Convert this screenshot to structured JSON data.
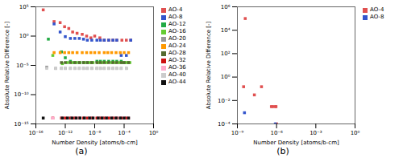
{
  "chart_data": [
    {
      "type": "scatter",
      "caption": "(a)",
      "xlabel": "Number Density [atoms/b-cm]",
      "ylabel": "Absolute Relative Difference [-]",
      "log": true,
      "grid": false,
      "legend": "right",
      "marker": "square",
      "xlim": [
        1e-16,
        1.0
      ],
      "ylim": [
        1e-15,
        100000.0
      ],
      "xticks": [
        {
          "value": 1e-16,
          "label": "10⁻¹⁶"
        },
        {
          "value": 1e-12,
          "label": "10⁻¹²"
        },
        {
          "value": 1e-08,
          "label": "10⁻⁸"
        },
        {
          "value": 0.0001,
          "label": "10⁻⁴"
        },
        {
          "value": 1.0,
          "label": "10⁰"
        }
      ],
      "yticks": [
        {
          "value": 1e-15,
          "label": "10⁻¹⁵"
        },
        {
          "value": 1e-10,
          "label": "10⁻¹⁰"
        },
        {
          "value": 1e-05,
          "label": "10⁻⁵"
        },
        {
          "value": 1.0,
          "label": "10⁰"
        },
        {
          "value": 100000.0,
          "label": "10⁵"
        }
      ],
      "series": [
        {
          "name": "AO-4",
          "color": "#e05050",
          "x": [
            1e-15,
            3e-14,
            2e-13,
            8e-13,
            3e-12,
            1e-11,
            4e-11,
            2e-10,
            8e-10,
            3e-09,
            1e-08,
            5e-08,
            2e-07,
            8e-07,
            3e-06,
            1e-05,
            5e-05,
            0.0002,
            0.0008
          ],
          "y": [
            30000.0,
            300.0,
            200.0,
            40.0,
            20.0,
            5.0,
            3.0,
            2.0,
            1.0,
            0.5,
            1.0,
            0.5,
            0.2,
            0.2,
            0.2,
            0.2,
            0.2,
            0.2,
            0.2
          ]
        },
        {
          "name": "AO-8",
          "color": "#3355cc",
          "x": [
            3e-14,
            2e-13,
            1e-12,
            5e-12,
            2e-11,
            8e-11,
            3e-10,
            1e-09,
            4e-09,
            2e-08,
            6e-08,
            2e-07,
            8e-07,
            3e-06,
            1e-05,
            4e-05,
            0.0002,
            0.0008
          ],
          "y": [
            120.0,
            5.0,
            0.8,
            0.4,
            0.4,
            0.4,
            0.3,
            0.2,
            0.2,
            0.2,
            0.2,
            0.2,
            0.2,
            0.2,
            0.2,
            0.0005,
            0.0005,
            0.2
          ]
        },
        {
          "name": "AO-12",
          "color": "#22aa44",
          "x": [
            5e-15,
            3e-13,
            1e-12,
            5e-12,
            2e-11,
            8e-11,
            3e-10,
            1e-09,
            4e-09,
            2e-08,
            6e-08,
            2e-07,
            8e-07,
            3e-06,
            1e-05,
            4e-05,
            0.0001,
            0.0004
          ],
          "y": [
            0.3,
            0.002,
            0.0002,
            5e-05,
            3e-05,
            3e-05,
            3e-05,
            3e-05,
            3e-05,
            5e-05,
            5e-05,
            5e-05,
            5e-05,
            5e-05,
            5e-05,
            5e-05,
            3e-05,
            3e-05
          ]
        },
        {
          "name": "AO-16",
          "color": "#66cc33",
          "x": [
            2e-14,
            4e-13,
            2e-12,
            8e-12,
            3e-11,
            1e-10,
            4e-10,
            2e-09,
            6e-09,
            3e-08,
            1e-07,
            4e-07,
            2e-06,
            6e-06,
            2e-05,
            5e-05,
            0.0002,
            0.0006
          ],
          "y": [
            0.0005,
            2e-05,
            3e-05,
            3e-05,
            3e-05,
            3e-05,
            3e-05,
            3e-05,
            3e-05,
            3e-05,
            3e-05,
            3e-05,
            3e-05,
            3e-05,
            3e-05,
            3e-05,
            3e-05,
            3e-05
          ]
        },
        {
          "name": "AO-20",
          "color": "#999999",
          "x": [
            3e-15,
            5e-14,
            3e-13,
            1e-12,
            5e-12,
            2e-11,
            8e-11,
            3e-10,
            1e-09,
            4e-09,
            2e-08,
            6e-08,
            2e-07,
            8e-07,
            3e-06,
            1e-05,
            4e-05,
            0.0002
          ],
          "y": [
            5e-06,
            3e-06,
            3e-06,
            3e-06,
            3e-06,
            3e-06,
            3e-06,
            3e-06,
            3e-06,
            3e-06,
            3e-06,
            3e-06,
            3e-06,
            3e-06,
            3e-06,
            3e-06,
            3e-06,
            3e-06
          ]
        },
        {
          "name": "AO-24",
          "color": "#ff9900",
          "x": [
            3e-14,
            2e-13,
            8e-13,
            3e-12,
            1e-11,
            4e-11,
            2e-10,
            8e-10,
            3e-09,
            1e-08,
            4e-08,
            2e-07,
            6e-07,
            2e-06,
            8e-06,
            3e-05,
            0.0001,
            0.0004
          ],
          "y": [
            0.0015,
            0.0015,
            0.0015,
            0.0015,
            0.0015,
            0.0015,
            0.0015,
            0.0015,
            0.0015,
            0.0015,
            0.0015,
            0.0015,
            0.0015,
            0.0015,
            0.0015,
            0.0015,
            0.0015,
            0.0015
          ]
        },
        {
          "name": "AO-28",
          "color": "#556b2f",
          "x": [
            3e-13,
            1e-12,
            5e-12,
            2e-11,
            8e-11,
            3e-10,
            1e-09,
            4e-09,
            2e-08,
            6e-08,
            2e-07,
            8e-07,
            3e-06,
            1e-05,
            4e-05,
            0.0001,
            0.0004
          ],
          "y": [
            3e-05,
            3e-05,
            3e-05,
            3e-05,
            3e-05,
            3e-05,
            3e-05,
            3e-05,
            3e-05,
            3e-05,
            3e-05,
            3e-05,
            3e-05,
            3e-05,
            3e-05,
            3e-05,
            3e-05
          ]
        },
        {
          "name": "AO-32",
          "color": "#cc1111",
          "x": [
            2e-14,
            3e-13,
            1e-12,
            5e-12,
            2e-11,
            8e-11,
            3e-10,
            1e-09,
            4e-09,
            2e-08,
            6e-08,
            2e-07,
            8e-07,
            3e-06,
            1e-05,
            4e-05,
            0.0002
          ],
          "y": [
            1e-14,
            1e-14,
            1e-14,
            1e-14,
            1e-14,
            1e-14,
            1e-14,
            1e-14,
            1e-14,
            1e-14,
            1e-14,
            1e-14,
            1e-14,
            1e-14,
            1e-14,
            1e-14,
            1e-14
          ]
        },
        {
          "name": "AO-36",
          "color": "#ffaacc",
          "x": [
            2e-14,
            4e-13,
            2e-12,
            8e-12,
            3e-11,
            1e-10,
            4e-10,
            2e-09,
            6e-09,
            3e-08,
            1e-07,
            4e-07,
            2e-06,
            8e-06,
            3e-05,
            0.0001,
            0.0004
          ],
          "y": [
            1e-14,
            1e-14,
            1e-14,
            1e-14,
            1e-14,
            1e-14,
            1e-14,
            1e-14,
            1e-14,
            1e-14,
            1e-14,
            1e-14,
            1e-14,
            1e-14,
            1e-14,
            1e-14,
            1e-14
          ]
        },
        {
          "name": "AO-40",
          "color": "#cccccc",
          "x": [
            3e-15,
            5e-14,
            3e-13,
            1e-12,
            5e-12,
            2e-11,
            8e-11,
            3e-10,
            1e-09,
            4e-09,
            2e-08,
            6e-08,
            2e-07,
            8e-07,
            3e-06,
            1e-05,
            4e-05,
            0.0002
          ],
          "y": [
            3e-06,
            3e-06,
            3e-06,
            3e-06,
            3e-06,
            3e-06,
            3e-06,
            3e-06,
            3e-06,
            3e-06,
            3e-06,
            3e-06,
            3e-06,
            3e-06,
            3e-06,
            3e-06,
            3e-06,
            3e-06
          ]
        },
        {
          "name": "AO-44",
          "color": "#111111",
          "x": [
            1e-15,
            4e-13,
            2e-12,
            8e-12,
            3e-11,
            1e-10,
            4e-10,
            2e-09,
            6e-09,
            3e-08,
            1e-07,
            4e-07,
            2e-06,
            8e-06,
            3e-05,
            0.0001,
            0.0004
          ],
          "y": [
            1e-14,
            1e-14,
            1e-14,
            1e-14,
            1e-14,
            1e-14,
            1e-14,
            1e-14,
            1e-14,
            1e-14,
            1e-14,
            1e-14,
            1e-14,
            1e-14,
            1e-14,
            1e-14,
            1e-14
          ]
        }
      ]
    },
    {
      "type": "scatter",
      "caption": "(b)",
      "xlabel": "Number Density [atoms/b-cm]",
      "ylabel": "Absolute Relative Difference [-]",
      "log": true,
      "grid": false,
      "legend": "right",
      "marker": "square",
      "xlim": [
        1e-09,
        1.0
      ],
      "ylim": [
        0.0001,
        1000000.0
      ],
      "xticks": [
        {
          "value": 1e-09,
          "label": "10⁻⁹"
        },
        {
          "value": 1e-06,
          "label": "10⁻⁶"
        },
        {
          "value": 0.001,
          "label": "10⁻³"
        },
        {
          "value": 1.0,
          "label": "10⁰"
        }
      ],
      "yticks": [
        {
          "value": 0.0001,
          "label": "10⁻⁴"
        },
        {
          "value": 0.01,
          "label": "10⁻²"
        },
        {
          "value": 1.0,
          "label": "10⁰"
        },
        {
          "value": 100.0,
          "label": "10²"
        },
        {
          "value": 10000.0,
          "label": "10⁴"
        },
        {
          "value": 1000000.0,
          "label": "10⁶"
        }
      ],
      "series": [
        {
          "name": "AO-4",
          "color": "#e05050",
          "x": [
            3e-09,
            4e-09,
            2e-08,
            7e-08,
            4e-07,
            5e-07,
            8e-07,
            9e-07,
            1e-06
          ],
          "y": [
            0.15,
            100000.0,
            0.03,
            0.15,
            0.003,
            0.003,
            0.003,
            0.003,
            0.0001
          ]
        },
        {
          "name": "AO-8",
          "color": "#3355cc",
          "x": [
            3.5e-09,
            8e-07
          ],
          "y": [
            0.0009,
            0.0001
          ]
        }
      ]
    }
  ]
}
